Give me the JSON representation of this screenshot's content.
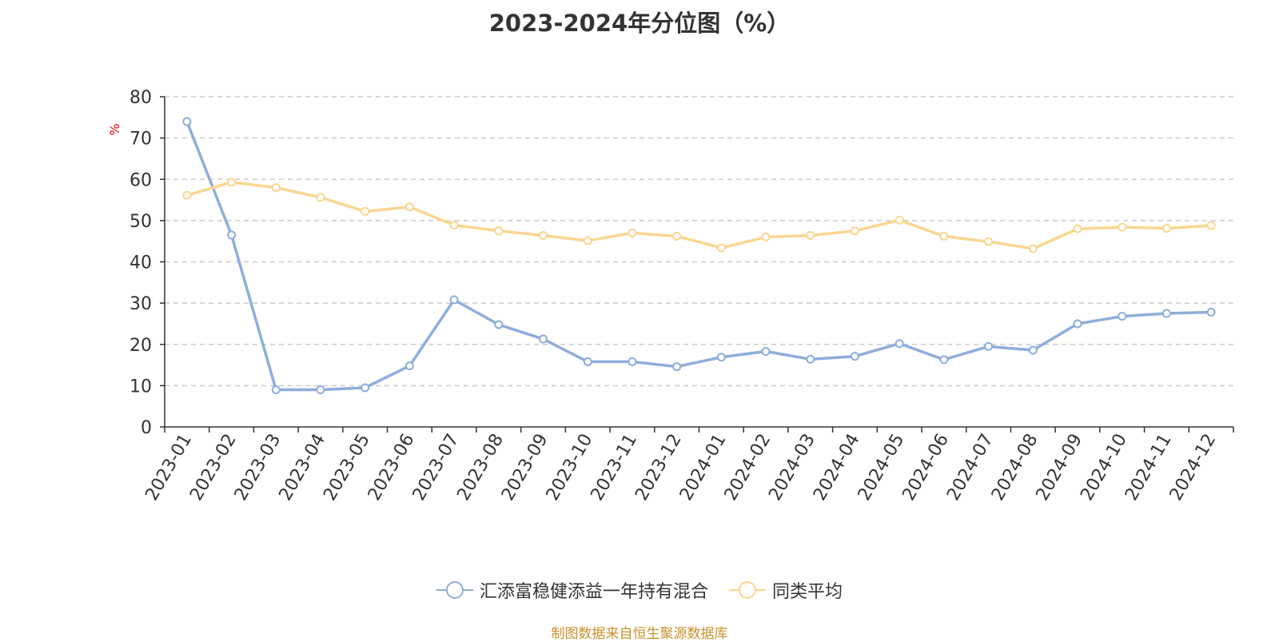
{
  "chart_data": {
    "type": "line",
    "title": "2023-2024年分位图（%）",
    "ylabel": "%",
    "ylim": [
      0,
      80
    ],
    "yticks": [
      0,
      10,
      20,
      30,
      40,
      50,
      60,
      70,
      80
    ],
    "grid": true,
    "legend_position": "bottom",
    "categories": [
      "2023-01",
      "2023-02",
      "2023-03",
      "2023-04",
      "2023-05",
      "2023-06",
      "2023-07",
      "2023-08",
      "2023-09",
      "2023-10",
      "2023-11",
      "2023-12",
      "2024-01",
      "2024-02",
      "2024-03",
      "2024-04",
      "2024-05",
      "2024-06",
      "2024-07",
      "2024-08",
      "2024-09",
      "2024-10",
      "2024-11",
      "2024-12"
    ],
    "series": [
      {
        "name": "汇添富稳健添益一年持有混合",
        "color": "#8eaedb",
        "values": [
          74,
          46.5,
          9,
          9,
          9.5,
          14.8,
          30.8,
          24.8,
          21.3,
          15.8,
          15.8,
          14.6,
          16.9,
          18.3,
          16.4,
          17.1,
          20.2,
          16.3,
          19.5,
          18.6,
          25,
          26.8,
          27.5,
          27.8
        ]
      },
      {
        "name": "同类平均",
        "color": "#fad690",
        "values": [
          56.1,
          59.3,
          58.0,
          55.6,
          52.2,
          53.3,
          48.9,
          47.5,
          46.4,
          45.1,
          47.0,
          46.2,
          43.4,
          46.0,
          46.4,
          47.5,
          50.1,
          46.2,
          44.9,
          43.2,
          48.0,
          48.4,
          48.1,
          48.8
        ]
      }
    ]
  },
  "source_note": "制图数据来自恒生聚源数据库",
  "colors": {
    "axis": "#333333",
    "grid": "#cccccc",
    "ylabel": "#ff0000",
    "source": "#c8922a"
  }
}
